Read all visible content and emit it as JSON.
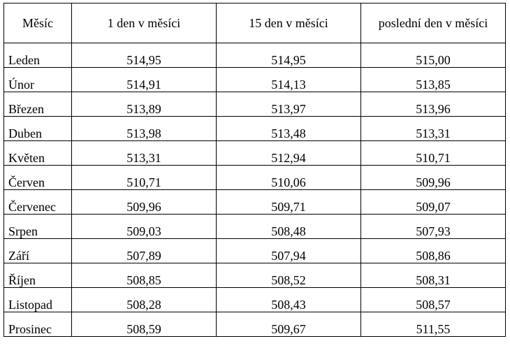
{
  "table": {
    "headers": [
      "Měsíc",
      "1 den v měsíci",
      "15 den v měsíci",
      "poslední den v měsíci"
    ],
    "rows": [
      [
        "Leden",
        "514,95",
        "514,95",
        "515,00"
      ],
      [
        "Únor",
        "514,91",
        "514,13",
        "513,85"
      ],
      [
        "Březen",
        "513,89",
        "513,97",
        "513,96"
      ],
      [
        "Duben",
        "513,98",
        "513,48",
        "513,31"
      ],
      [
        "Květen",
        "513,31",
        "512,94",
        "510,71"
      ],
      [
        "Červen",
        "510,71",
        "510,06",
        "509,96"
      ],
      [
        "Červenec",
        "509,96",
        "509,71",
        "509,07"
      ],
      [
        "Srpen",
        "509,03",
        "508,48",
        "507,93"
      ],
      [
        "Září",
        "507,89",
        "507,94",
        "508,86"
      ],
      [
        "Říjen",
        "508,85",
        "508,52",
        "508,31"
      ],
      [
        "Listopad",
        "508,28",
        "508,43",
        "508,57"
      ],
      [
        "Prosinec",
        "508,59",
        "509,67",
        "511,55"
      ]
    ]
  }
}
